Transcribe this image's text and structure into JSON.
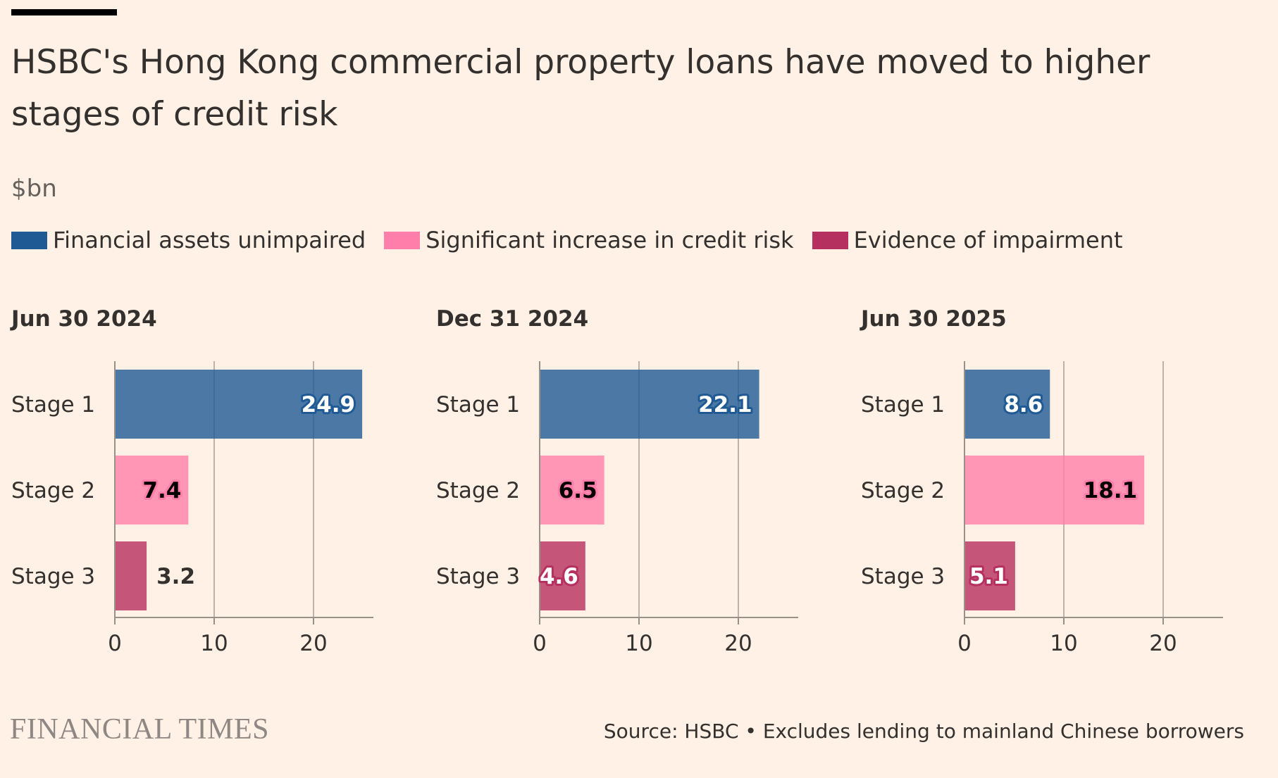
{
  "header": {
    "title": "HSBC's Hong Kong commercial property loans have moved to higher stages of credit risk",
    "unit": "$bn"
  },
  "legend": [
    {
      "label": "Financial assets unimpaired",
      "color": "#1F5A95"
    },
    {
      "label": "Significant increase in credit risk",
      "color": "#FF7FAA"
    },
    {
      "label": "Evidence of impairment",
      "color": "#B6305F"
    }
  ],
  "colors": {
    "background": "#FFF1E5",
    "gridline": "#BDB3AA",
    "axis": "#999087",
    "text": "#33302E",
    "stage1": "#1F5A95",
    "stage2": "#FF7FAA",
    "stage3": "#B6305F"
  },
  "chart_data": [
    {
      "type": "bar",
      "orientation": "horizontal",
      "title": "Jun 30 2024",
      "categories": [
        "Stage 1",
        "Stage 2",
        "Stage 3"
      ],
      "values": [
        24.9,
        7.4,
        3.2
      ],
      "xlim": [
        0,
        26
      ],
      "xticks": [
        0,
        10,
        20
      ],
      "grid": true
    },
    {
      "type": "bar",
      "orientation": "horizontal",
      "title": "Dec 31 2024",
      "categories": [
        "Stage 1",
        "Stage 2",
        "Stage 3"
      ],
      "values": [
        22.1,
        6.5,
        4.6
      ],
      "xlim": [
        0,
        26
      ],
      "xticks": [
        0,
        10,
        20
      ],
      "grid": true
    },
    {
      "type": "bar",
      "orientation": "horizontal",
      "title": "Jun 30 2025",
      "categories": [
        "Stage 1",
        "Stage 2",
        "Stage 3"
      ],
      "values": [
        8.6,
        18.1,
        5.1
      ],
      "xlim": [
        0,
        26
      ],
      "xticks": [
        0,
        10,
        20
      ],
      "grid": true
    }
  ],
  "footer": {
    "brand": "FINANCIAL TIMES",
    "source": "Source: HSBC • Excludes lending to mainland Chinese borrowers"
  }
}
